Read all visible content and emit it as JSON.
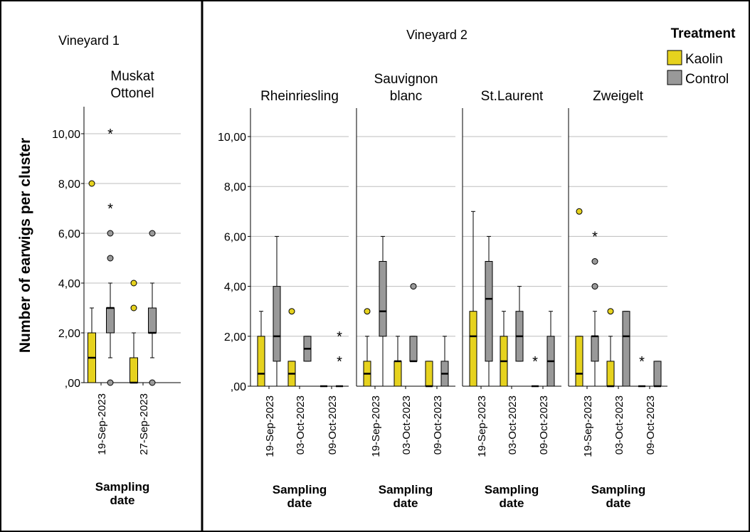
{
  "chart_data": {
    "type": "boxplot",
    "ylabel": "Number of earwigs per cluster",
    "xlabel": "Sampling date",
    "ylim": [
      0,
      11
    ],
    "yticks": [
      0,
      2,
      4,
      6,
      8,
      10
    ],
    "ytick_labels": [
      ",00",
      "2,00",
      "4,00",
      "6,00",
      "8,00",
      "10,00"
    ],
    "legend": {
      "title": "Treatment",
      "position": "top-right",
      "entries": [
        {
          "name": "Kaolin",
          "color": "#e6d21e"
        },
        {
          "name": "Control",
          "color": "#999999"
        }
      ]
    },
    "vineyards": [
      {
        "name": "Vineyard 1",
        "panels": [
          {
            "variety": "Muskat\nOttonel",
            "dates": [
              "19-Sep-2023",
              "27-Sep-2023"
            ],
            "boxes": [
              {
                "date_index": 0,
                "treatment": "Kaolin",
                "min": 0,
                "q1": 0,
                "median": 1,
                "q3": 2,
                "max": 3,
                "outliers": [
                  8
                ],
                "extremes": []
              },
              {
                "date_index": 0,
                "treatment": "Control",
                "min": 1,
                "q1": 2,
                "median": 3,
                "q3": 3,
                "max": 4,
                "outliers": [
                  0,
                  5,
                  6
                ],
                "extremes": [
                  7,
                  10
                ]
              },
              {
                "date_index": 1,
                "treatment": "Kaolin",
                "min": 0,
                "q1": 0,
                "median": 0,
                "q3": 1,
                "max": 2,
                "outliers": [
                  3,
                  4
                ],
                "extremes": []
              },
              {
                "date_index": 1,
                "treatment": "Control",
                "min": 1,
                "q1": 2,
                "median": 2,
                "q3": 3,
                "max": 4,
                "outliers": [
                  0,
                  6
                ],
                "extremes": []
              }
            ]
          }
        ]
      },
      {
        "name": "Vineyard 2",
        "panels": [
          {
            "variety": "Rheinriesling",
            "dates": [
              "19-Sep-2023",
              "03-Oct-2023",
              "09-Oct-2023"
            ],
            "boxes": [
              {
                "date_index": 0,
                "treatment": "Kaolin",
                "min": 0,
                "q1": 0,
                "median": 0.5,
                "q3": 2,
                "max": 3,
                "outliers": [],
                "extremes": []
              },
              {
                "date_index": 0,
                "treatment": "Control",
                "min": 0,
                "q1": 1,
                "median": 2,
                "q3": 4,
                "max": 6,
                "outliers": [],
                "extremes": []
              },
              {
                "date_index": 1,
                "treatment": "Kaolin",
                "min": 0,
                "q1": 0,
                "median": 0.5,
                "q3": 1,
                "max": 1,
                "outliers": [
                  3
                ],
                "extremes": []
              },
              {
                "date_index": 1,
                "treatment": "Control",
                "min": 1,
                "q1": 1,
                "median": 1.5,
                "q3": 2,
                "max": 2,
                "outliers": [],
                "extremes": []
              },
              {
                "date_index": 2,
                "treatment": "Kaolin",
                "min": 0,
                "q1": 0,
                "median": 0,
                "q3": 0,
                "max": 0,
                "outliers": [],
                "extremes": []
              },
              {
                "date_index": 2,
                "treatment": "Control",
                "min": 0,
                "q1": 0,
                "median": 0,
                "q3": 0,
                "max": 0,
                "outliers": [],
                "extremes": [
                  1,
                  2
                ]
              }
            ]
          },
          {
            "variety": "Sauvignon\nblanc",
            "dates": [
              "19-Sep-2023",
              "03-Oct-2023",
              "09-Oct-2023"
            ],
            "boxes": [
              {
                "date_index": 0,
                "treatment": "Kaolin",
                "min": 0,
                "q1": 0,
                "median": 0.5,
                "q3": 1,
                "max": 2,
                "outliers": [
                  3
                ],
                "extremes": []
              },
              {
                "date_index": 0,
                "treatment": "Control",
                "min": 0,
                "q1": 2,
                "median": 3,
                "q3": 5,
                "max": 6,
                "outliers": [],
                "extremes": []
              },
              {
                "date_index": 1,
                "treatment": "Kaolin",
                "min": 0,
                "q1": 0,
                "median": 1,
                "q3": 1,
                "max": 2,
                "outliers": [],
                "extremes": []
              },
              {
                "date_index": 1,
                "treatment": "Control",
                "min": 1,
                "q1": 1,
                "median": 1,
                "q3": 2,
                "max": 2,
                "outliers": [
                  4
                ],
                "extremes": []
              },
              {
                "date_index": 2,
                "treatment": "Kaolin",
                "min": 0,
                "q1": 0,
                "median": 0,
                "q3": 1,
                "max": 1,
                "outliers": [],
                "extremes": []
              },
              {
                "date_index": 2,
                "treatment": "Control",
                "min": 0,
                "q1": 0,
                "median": 0.5,
                "q3": 1,
                "max": 2,
                "outliers": [],
                "extremes": []
              }
            ]
          },
          {
            "variety": "St.Laurent",
            "dates": [
              "19-Sep-2023",
              "03-Oct-2023",
              "09-Oct-2023"
            ],
            "boxes": [
              {
                "date_index": 0,
                "treatment": "Kaolin",
                "min": 0,
                "q1": 0,
                "median": 2,
                "q3": 3,
                "max": 7,
                "outliers": [],
                "extremes": []
              },
              {
                "date_index": 0,
                "treatment": "Control",
                "min": 0,
                "q1": 1,
                "median": 3.5,
                "q3": 5,
                "max": 6,
                "outliers": [],
                "extremes": []
              },
              {
                "date_index": 1,
                "treatment": "Kaolin",
                "min": 0,
                "q1": 0,
                "median": 1,
                "q3": 2,
                "max": 3,
                "outliers": [],
                "extremes": []
              },
              {
                "date_index": 1,
                "treatment": "Control",
                "min": 1,
                "q1": 1,
                "median": 2,
                "q3": 3,
                "max": 4,
                "outliers": [],
                "extremes": []
              },
              {
                "date_index": 2,
                "treatment": "Kaolin",
                "min": 0,
                "q1": 0,
                "median": 0,
                "q3": 0,
                "max": 0,
                "outliers": [],
                "extremes": [
                  1
                ]
              },
              {
                "date_index": 2,
                "treatment": "Control",
                "min": 0,
                "q1": 0,
                "median": 1,
                "q3": 2,
                "max": 3,
                "outliers": [],
                "extremes": []
              }
            ]
          },
          {
            "variety": "Zweigelt",
            "dates": [
              "19-Sep-2023",
              "03-Oct-2023",
              "09-Oct-2023"
            ],
            "boxes": [
              {
                "date_index": 0,
                "treatment": "Kaolin",
                "min": 0,
                "q1": 0,
                "median": 0.5,
                "q3": 2,
                "max": 2,
                "outliers": [
                  7
                ],
                "extremes": []
              },
              {
                "date_index": 0,
                "treatment": "Control",
                "min": 0,
                "q1": 1,
                "median": 2,
                "q3": 2,
                "max": 3,
                "outliers": [
                  4,
                  5
                ],
                "extremes": [
                  6
                ]
              },
              {
                "date_index": 1,
                "treatment": "Kaolin",
                "min": 0,
                "q1": 0,
                "median": 0,
                "q3": 1,
                "max": 2,
                "outliers": [
                  3
                ],
                "extremes": []
              },
              {
                "date_index": 1,
                "treatment": "Control",
                "min": 0,
                "q1": 0,
                "median": 2,
                "q3": 3,
                "max": 3,
                "outliers": [],
                "extremes": []
              },
              {
                "date_index": 2,
                "treatment": "Kaolin",
                "min": 0,
                "q1": 0,
                "median": 0,
                "q3": 0,
                "max": 0,
                "outliers": [],
                "extremes": [
                  1
                ]
              },
              {
                "date_index": 2,
                "treatment": "Control",
                "min": 0,
                "q1": 0,
                "median": 0,
                "q3": 1,
                "max": 1,
                "outliers": [],
                "extremes": []
              }
            ]
          }
        ]
      }
    ]
  }
}
